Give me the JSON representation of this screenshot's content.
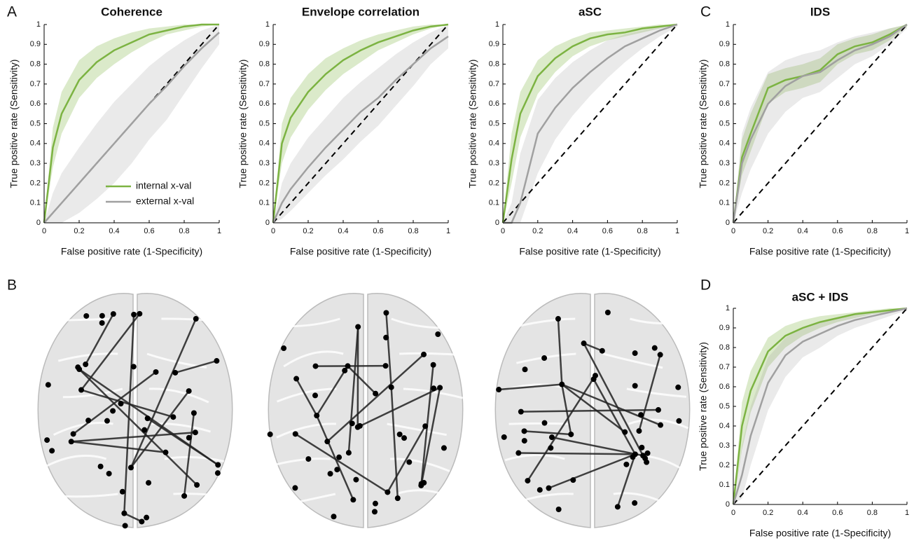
{
  "panel_labels": [
    "A",
    "B",
    "C",
    "D"
  ],
  "chart_data": [
    {
      "type": "line",
      "title": "Coherence",
      "x_label": "False positive rate (1-Specificity)",
      "y_label": "True positive rate (Sensitivity)",
      "x": [
        0,
        0.05,
        0.1,
        0.2,
        0.3,
        0.4,
        0.5,
        0.6,
        0.7,
        0.8,
        0.9,
        1
      ],
      "series": [
        {
          "name": "internal x-val",
          "color": "#7cb342",
          "values": [
            0,
            0.38,
            0.55,
            0.72,
            0.81,
            0.87,
            0.91,
            0.95,
            0.97,
            0.99,
            1,
            1
          ],
          "upper": [
            0,
            0.48,
            0.66,
            0.82,
            0.89,
            0.93,
            0.96,
            0.98,
            0.99,
            1,
            1,
            1
          ],
          "lower": [
            0,
            0.28,
            0.45,
            0.63,
            0.73,
            0.8,
            0.86,
            0.91,
            0.95,
            0.97,
            0.99,
            1
          ]
        },
        {
          "name": "external x-val",
          "color": "#a0a0a0",
          "values": [
            0,
            0.05,
            0.1,
            0.2,
            0.3,
            0.4,
            0.5,
            0.6,
            0.69,
            0.79,
            0.88,
            0.96
          ],
          "upper": [
            0,
            0.15,
            0.25,
            0.38,
            0.5,
            0.61,
            0.7,
            0.79,
            0.86,
            0.92,
            0.97,
            1
          ],
          "lower": [
            0,
            0,
            0,
            0.05,
            0.12,
            0.2,
            0.3,
            0.42,
            0.52,
            0.65,
            0.78,
            0.9
          ]
        }
      ],
      "xlim": [
        0,
        1
      ],
      "ylim": [
        0,
        1
      ],
      "xticks": [
        0,
        0.2,
        0.4,
        0.6,
        0.8,
        1
      ],
      "yticks": [
        0,
        0.1,
        0.2,
        0.3,
        0.4,
        0.5,
        0.6,
        0.7,
        0.8,
        0.9,
        1
      ],
      "legend": "lower right"
    },
    {
      "type": "line",
      "title": "Envelope correlation",
      "x_label": "False positive rate (1-Specificity)",
      "y_label": "True positive rate (Sensitivity)",
      "x": [
        0,
        0.05,
        0.1,
        0.2,
        0.3,
        0.4,
        0.5,
        0.6,
        0.7,
        0.8,
        0.9,
        1
      ],
      "series": [
        {
          "name": "internal x-val",
          "color": "#7cb342",
          "values": [
            0,
            0.4,
            0.53,
            0.66,
            0.75,
            0.82,
            0.87,
            0.91,
            0.94,
            0.97,
            0.99,
            1
          ],
          "upper": [
            0,
            0.5,
            0.63,
            0.75,
            0.83,
            0.88,
            0.92,
            0.95,
            0.97,
            0.99,
            1,
            1
          ],
          "lower": [
            0,
            0.3,
            0.43,
            0.57,
            0.67,
            0.75,
            0.81,
            0.87,
            0.91,
            0.95,
            0.98,
            1
          ]
        },
        {
          "name": "external x-val",
          "color": "#a0a0a0",
          "values": [
            0,
            0.1,
            0.17,
            0.28,
            0.38,
            0.47,
            0.56,
            0.63,
            0.72,
            0.8,
            0.88,
            0.94
          ],
          "upper": [
            0,
            0.2,
            0.3,
            0.43,
            0.53,
            0.63,
            0.71,
            0.78,
            0.85,
            0.91,
            0.96,
            1
          ],
          "lower": [
            0,
            0.02,
            0.06,
            0.15,
            0.24,
            0.32,
            0.41,
            0.49,
            0.59,
            0.69,
            0.8,
            0.88
          ]
        }
      ],
      "xlim": [
        0,
        1
      ],
      "ylim": [
        0,
        1
      ],
      "xticks": [
        0,
        0.2,
        0.4,
        0.6,
        0.8,
        1
      ],
      "yticks": [
        0,
        0.1,
        0.2,
        0.3,
        0.4,
        0.5,
        0.6,
        0.7,
        0.8,
        0.9,
        1
      ]
    },
    {
      "type": "line",
      "title": "aSC",
      "x_label": "False positive rate (1-Specificity)",
      "y_label": "True positive rate (Sensitivity)",
      "x": [
        0,
        0.05,
        0.1,
        0.2,
        0.3,
        0.4,
        0.5,
        0.6,
        0.7,
        0.8,
        0.9,
        1
      ],
      "series": [
        {
          "name": "internal x-val",
          "color": "#7cb342",
          "values": [
            0,
            0.32,
            0.55,
            0.74,
            0.83,
            0.89,
            0.93,
            0.95,
            0.96,
            0.98,
            0.99,
            1
          ],
          "upper": [
            0,
            0.45,
            0.66,
            0.82,
            0.89,
            0.93,
            0.96,
            0.97,
            0.98,
            0.99,
            1,
            1
          ],
          "lower": [
            0,
            0.2,
            0.43,
            0.65,
            0.76,
            0.84,
            0.89,
            0.92,
            0.94,
            0.96,
            0.98,
            1
          ]
        },
        {
          "name": "external x-val",
          "color": "#a0a0a0",
          "values": [
            0,
            0,
            0.1,
            0.45,
            0.58,
            0.68,
            0.76,
            0.83,
            0.89,
            0.93,
            0.97,
            1
          ],
          "upper": [
            0,
            0.1,
            0.35,
            0.62,
            0.73,
            0.81,
            0.87,
            0.92,
            0.95,
            0.97,
            0.99,
            1
          ],
          "lower": [
            0,
            0,
            0,
            0.25,
            0.42,
            0.54,
            0.64,
            0.73,
            0.81,
            0.88,
            0.94,
            0.99
          ]
        }
      ],
      "xlim": [
        0,
        1
      ],
      "ylim": [
        0,
        1
      ],
      "xticks": [
        0,
        0.2,
        0.4,
        0.6,
        0.8,
        1
      ],
      "yticks": [
        0,
        0.1,
        0.2,
        0.3,
        0.4,
        0.5,
        0.6,
        0.7,
        0.8,
        0.9,
        1
      ]
    },
    {
      "type": "line",
      "title": "IDS",
      "x_label": "False positive rate (1-Specificity)",
      "y_label": "True positive rate (Sensitivity)",
      "x": [
        0,
        0.05,
        0.1,
        0.2,
        0.3,
        0.4,
        0.5,
        0.6,
        0.7,
        0.8,
        0.9,
        1
      ],
      "series": [
        {
          "name": "internal x-val",
          "color": "#7cb342",
          "values": [
            0,
            0.33,
            0.45,
            0.68,
            0.72,
            0.74,
            0.77,
            0.85,
            0.89,
            0.91,
            0.95,
            1
          ],
          "upper": [
            0,
            0.42,
            0.55,
            0.75,
            0.78,
            0.8,
            0.83,
            0.9,
            0.93,
            0.95,
            0.98,
            1
          ],
          "lower": [
            0,
            0.24,
            0.36,
            0.6,
            0.66,
            0.68,
            0.71,
            0.8,
            0.85,
            0.87,
            0.92,
            0.99
          ]
        },
        {
          "name": "external x-val",
          "color": "#a0a0a0",
          "values": [
            0,
            0.3,
            0.42,
            0.6,
            0.69,
            0.74,
            0.76,
            0.82,
            0.87,
            0.9,
            0.94,
            1
          ],
          "upper": [
            0,
            0.45,
            0.58,
            0.76,
            0.82,
            0.85,
            0.87,
            0.91,
            0.94,
            0.96,
            0.98,
            1
          ],
          "lower": [
            0,
            0.15,
            0.27,
            0.45,
            0.56,
            0.63,
            0.66,
            0.73,
            0.8,
            0.84,
            0.9,
            0.98
          ]
        }
      ],
      "xlim": [
        0,
        1
      ],
      "ylim": [
        0,
        1
      ],
      "xticks": [
        0,
        0.2,
        0.4,
        0.6,
        0.8,
        1
      ],
      "yticks": [
        0,
        0.1,
        0.2,
        0.3,
        0.4,
        0.5,
        0.6,
        0.7,
        0.8,
        0.9,
        1
      ]
    },
    {
      "type": "line",
      "title": "aSC + IDS",
      "x_label": "False positive rate (1-Specificity)",
      "y_label": "True positive rate (Sensitivity)",
      "x": [
        0,
        0.05,
        0.1,
        0.2,
        0.3,
        0.4,
        0.5,
        0.6,
        0.7,
        0.8,
        0.9,
        1
      ],
      "series": [
        {
          "name": "internal x-val",
          "color": "#7cb342",
          "values": [
            0,
            0.4,
            0.58,
            0.78,
            0.86,
            0.9,
            0.93,
            0.95,
            0.97,
            0.98,
            0.99,
            1
          ],
          "upper": [
            0,
            0.52,
            0.68,
            0.85,
            0.91,
            0.94,
            0.96,
            0.97,
            0.98,
            0.99,
            1,
            1
          ],
          "lower": [
            0,
            0.28,
            0.47,
            0.7,
            0.8,
            0.86,
            0.9,
            0.93,
            0.95,
            0.97,
            0.98,
            1
          ]
        },
        {
          "name": "external x-val",
          "color": "#a0a0a0",
          "values": [
            0,
            0.15,
            0.35,
            0.62,
            0.76,
            0.83,
            0.87,
            0.91,
            0.94,
            0.96,
            0.98,
            1
          ],
          "upper": [
            0,
            0.3,
            0.5,
            0.75,
            0.85,
            0.9,
            0.93,
            0.95,
            0.97,
            0.98,
            0.99,
            1
          ],
          "lower": [
            0,
            0.03,
            0.2,
            0.48,
            0.65,
            0.75,
            0.8,
            0.86,
            0.9,
            0.93,
            0.96,
            0.99
          ]
        }
      ],
      "xlim": [
        0,
        1
      ],
      "ylim": [
        0,
        1
      ],
      "xticks": [
        0,
        0.2,
        0.4,
        0.6,
        0.8,
        1
      ],
      "yticks": [
        0,
        0.1,
        0.2,
        0.3,
        0.4,
        0.5,
        0.6,
        0.7,
        0.8,
        0.9,
        1
      ]
    }
  ]
}
